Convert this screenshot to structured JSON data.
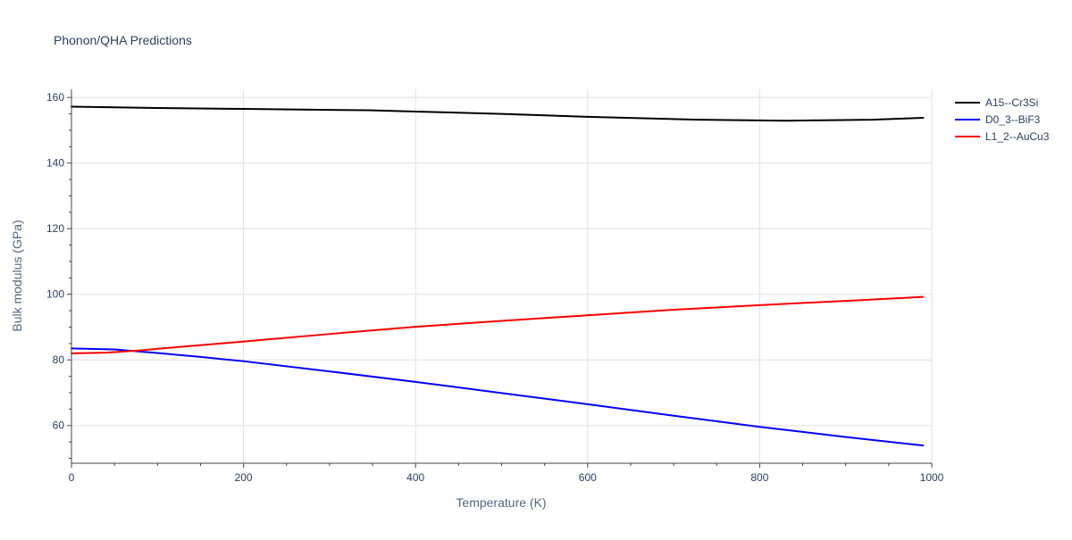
{
  "chart_data": {
    "type": "line",
    "title": "Phonon/QHA Predictions",
    "xlabel": "Temperature (K)",
    "ylabel": "Bulk modulus (GPa)",
    "xlim": [
      0,
      1000
    ],
    "ylim": [
      48.5,
      162.5
    ],
    "x_ticks": [
      0,
      200,
      400,
      600,
      800,
      1000
    ],
    "x_tick_labels": [
      "0",
      "200",
      "400",
      "600",
      "800",
      "1000"
    ],
    "y_ticks": [
      60,
      80,
      100,
      120,
      140,
      160
    ],
    "y_tick_labels": [
      "60",
      "80",
      "100",
      "120",
      "140",
      "160"
    ],
    "grid": true,
    "legend_position": "right",
    "series": [
      {
        "name": "A15--Cr3Si",
        "color": "#000000",
        "x": [
          0,
          50,
          100,
          200,
          300,
          345,
          400,
          500,
          600,
          730,
          830,
          930,
          990
        ],
        "y": [
          157.2,
          157.0,
          156.8,
          156.5,
          156.2,
          156.1,
          155.7,
          155.0,
          154.1,
          153.2,
          152.9,
          153.2,
          153.8
        ]
      },
      {
        "name": "D0_3--BiF3",
        "color": "#0000ff",
        "x": [
          0,
          50,
          100,
          150,
          200,
          300,
          400,
          500,
          600,
          700,
          800,
          900,
          990
        ],
        "y": [
          83.5,
          83.2,
          82.1,
          80.9,
          79.6,
          76.5,
          73.3,
          69.9,
          66.5,
          63.0,
          59.6,
          56.5,
          53.9
        ]
      },
      {
        "name": "L1_2--AuCu3",
        "color": "#ff0000",
        "x": [
          0,
          40,
          80,
          100,
          200,
          300,
          400,
          500,
          600,
          700,
          800,
          900,
          990
        ],
        "y": [
          82.0,
          82.2,
          82.9,
          83.4,
          85.6,
          87.9,
          90.1,
          91.9,
          93.6,
          95.3,
          96.7,
          98.0,
          99.2
        ]
      }
    ]
  }
}
